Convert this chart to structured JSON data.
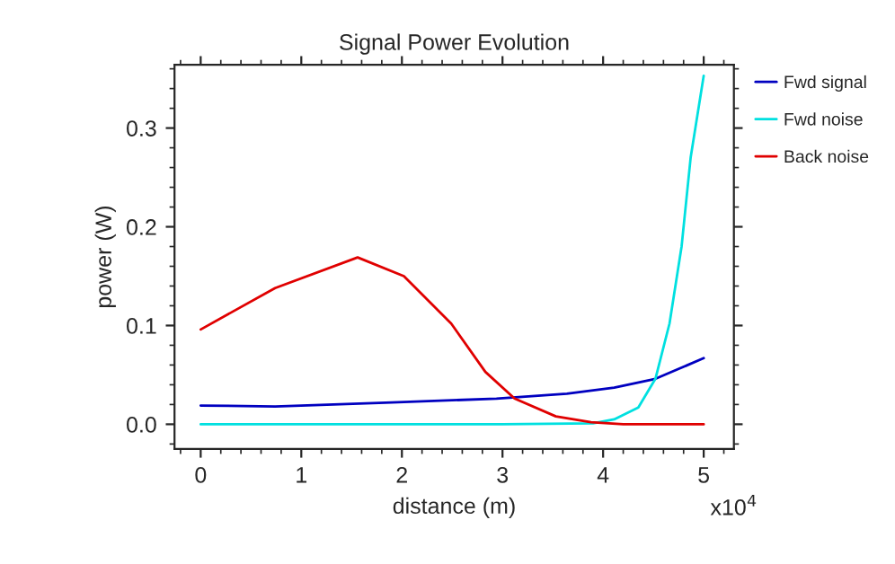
{
  "chart_data": {
    "type": "line",
    "title": "Signal Power Evolution",
    "xlabel": "distance (m)",
    "ylabel": "power (W)",
    "annotations": [
      "x10$^{4}$"
    ],
    "series": [
      {
        "name": "Fwd signal",
        "color": "#0000c0",
        "x": [
          0,
          0.74,
          1.9,
          2.94,
          3.64,
          4.11,
          4.52,
          4.75,
          5.0
        ],
        "values": [
          0.019,
          0.018,
          0.022,
          0.026,
          0.031,
          0.037,
          0.046,
          0.056,
          0.067
        ]
      },
      {
        "name": "Fwd noise",
        "color": "#00e0e0",
        "x": [
          0,
          1.0,
          2.0,
          3.0,
          3.9,
          4.11,
          4.35,
          4.52,
          4.66,
          4.78,
          4.87,
          5.0
        ],
        "values": [
          0.0,
          0.0,
          0.0,
          0.0,
          0.001,
          0.005,
          0.017,
          0.046,
          0.102,
          0.18,
          0.27,
          0.353
        ]
      },
      {
        "name": "Back noise",
        "color": "#e00000",
        "x": [
          0,
          0.74,
          1.56,
          2.02,
          2.49,
          2.83,
          3.12,
          3.53,
          3.88,
          4.2,
          4.6,
          5.0
        ],
        "values": [
          0.096,
          0.138,
          0.169,
          0.15,
          0.102,
          0.053,
          0.026,
          0.008,
          0.002,
          0.0,
          0.0,
          0.0
        ]
      }
    ],
    "xlim": [
      -0.26,
      5.3
    ],
    "ylim": [
      -0.025,
      0.364
    ],
    "xticks": [
      0,
      1,
      2,
      3,
      4,
      5
    ],
    "yticks": [
      {
        "value": 0.0,
        "label": "0.0"
      },
      {
        "value": 0.1,
        "label": "0.1"
      },
      {
        "value": 0.2,
        "label": "0.2"
      },
      {
        "value": 0.3,
        "label": "0.3"
      }
    ],
    "grid": false,
    "legend": "right",
    "marker": "none",
    "line_style": "solid"
  }
}
